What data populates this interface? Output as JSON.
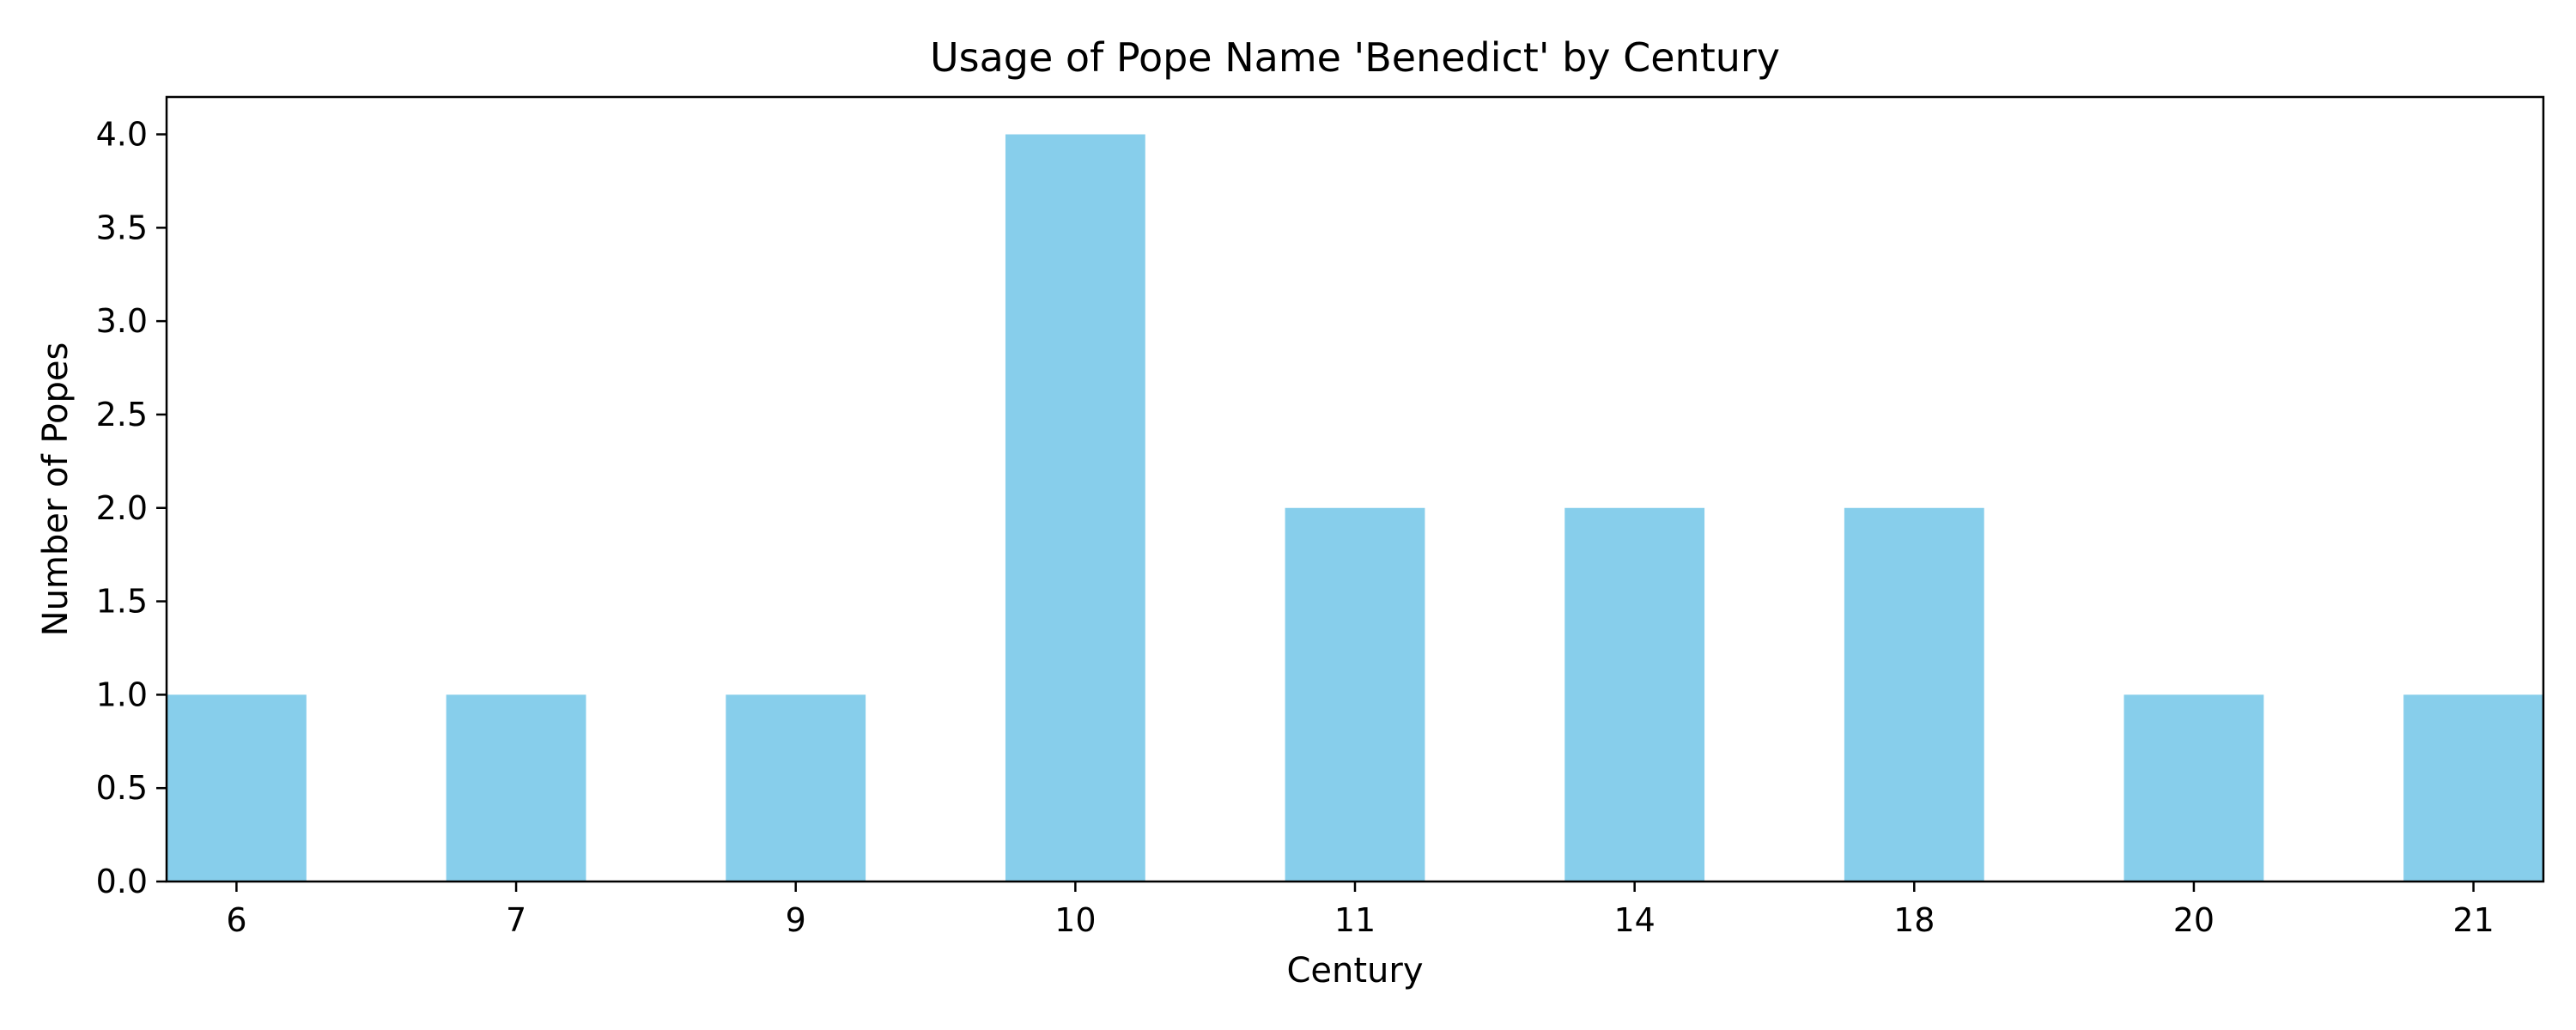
{
  "chart_data": {
    "type": "bar",
    "title": "Usage of Pope Name 'Benedict' by Century",
    "xlabel": "Century",
    "ylabel": "Number of Popes",
    "categories": [
      "6",
      "7",
      "9",
      "10",
      "11",
      "14",
      "18",
      "20",
      "21"
    ],
    "values": [
      1,
      1,
      1,
      4,
      2,
      2,
      2,
      1,
      1
    ],
    "ylim": [
      0,
      4.2
    ],
    "yticks": [
      "0.0",
      "0.5",
      "1.0",
      "1.5",
      "2.0",
      "2.5",
      "3.0",
      "3.5",
      "4.0"
    ],
    "grid": false,
    "legend": "none",
    "colors": {
      "bar": "#87ceeb",
      "axis": "#000000",
      "background": "#ffffff"
    }
  }
}
